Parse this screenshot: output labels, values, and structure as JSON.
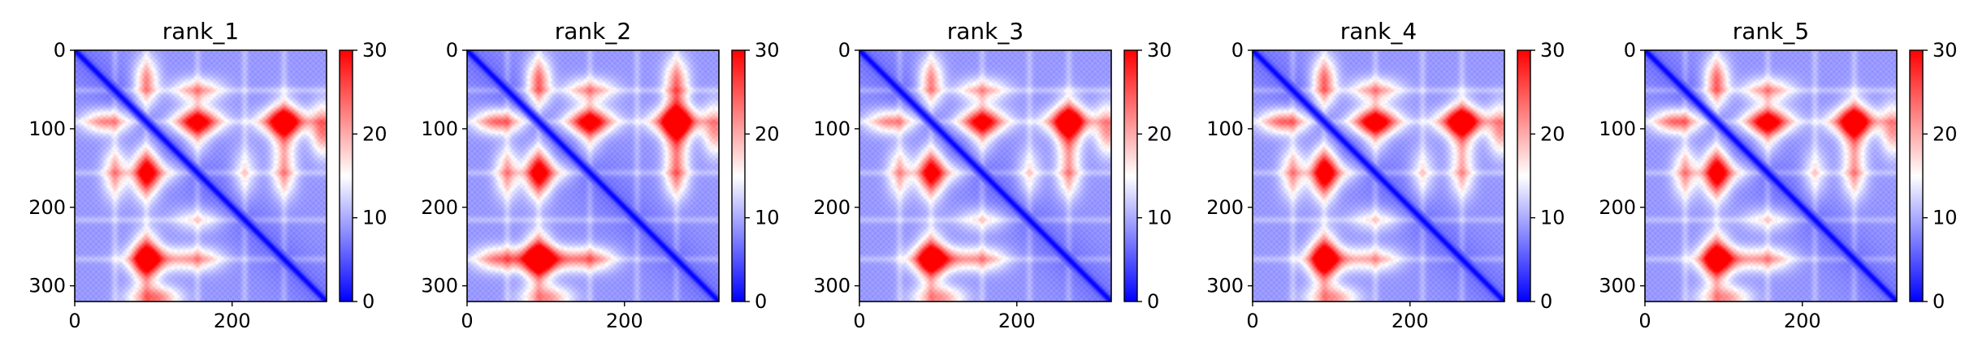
{
  "figure": {
    "description_type": "heatmap-grid",
    "panel_count": 5
  },
  "colormap": {
    "name": "bwr",
    "low_color": "#0000ff",
    "mid_color": "#ffffff",
    "high_color": "#ff0000"
  },
  "chart_data": [
    {
      "type": "heatmap",
      "title": "rank_1",
      "xlabel": "",
      "ylabel": "",
      "xlim": [
        0,
        320
      ],
      "ylim": [
        320,
        0
      ],
      "xticks": [
        0,
        200
      ],
      "yticks": [
        0,
        100,
        200,
        300
      ],
      "colorbar": {
        "vmin": 0,
        "vmax": 30,
        "ticks": [
          0,
          10,
          20,
          30
        ]
      },
      "diagonal_value": 0,
      "background_value": 6,
      "hotspots": [
        {
          "i": 90,
          "j": 155,
          "value": 26
        },
        {
          "i": 90,
          "j": 265,
          "value": 26
        },
        {
          "i": 90,
          "j": 40,
          "value": 20
        },
        {
          "i": 50,
          "j": 155,
          "value": 18
        },
        {
          "i": 265,
          "j": 95,
          "value": 22
        },
        {
          "i": 265,
          "j": 155,
          "value": 18
        },
        {
          "i": 155,
          "j": 100,
          "value": 16
        },
        {
          "i": 215,
          "j": 155,
          "value": 14
        },
        {
          "i": 315,
          "j": 100,
          "value": 22
        }
      ]
    },
    {
      "type": "heatmap",
      "title": "rank_2",
      "xlabel": "",
      "ylabel": "",
      "xlim": [
        0,
        320
      ],
      "ylim": [
        320,
        0
      ],
      "xticks": [
        0,
        200
      ],
      "yticks": [
        0,
        100,
        200,
        300
      ],
      "colorbar": {
        "vmin": 0,
        "vmax": 30,
        "ticks": [
          0,
          10,
          20,
          30
        ]
      },
      "diagonal_value": 0,
      "background_value": 6,
      "hotspots": [
        {
          "i": 90,
          "j": 155,
          "value": 26
        },
        {
          "i": 90,
          "j": 265,
          "value": 26
        },
        {
          "i": 90,
          "j": 40,
          "value": 22
        },
        {
          "i": 265,
          "j": 95,
          "value": 28
        },
        {
          "i": 265,
          "j": 155,
          "value": 20
        },
        {
          "i": 265,
          "j": 40,
          "value": 20
        },
        {
          "i": 50,
          "j": 155,
          "value": 18
        },
        {
          "i": 155,
          "j": 100,
          "value": 16
        },
        {
          "i": 315,
          "j": 100,
          "value": 20
        }
      ]
    },
    {
      "type": "heatmap",
      "title": "rank_3",
      "xlabel": "",
      "ylabel": "",
      "xlim": [
        0,
        320
      ],
      "ylim": [
        320,
        0
      ],
      "xticks": [
        0,
        200
      ],
      "yticks": [
        0,
        100,
        200,
        300
      ],
      "colorbar": {
        "vmin": 0,
        "vmax": 30,
        "ticks": [
          0,
          10,
          20,
          30
        ]
      },
      "diagonal_value": 0,
      "background_value": 6,
      "hotspots": [
        {
          "i": 90,
          "j": 155,
          "value": 25
        },
        {
          "i": 90,
          "j": 265,
          "value": 24
        },
        {
          "i": 90,
          "j": 40,
          "value": 20
        },
        {
          "i": 265,
          "j": 95,
          "value": 26
        },
        {
          "i": 265,
          "j": 155,
          "value": 18
        },
        {
          "i": 50,
          "j": 155,
          "value": 17
        },
        {
          "i": 155,
          "j": 100,
          "value": 16
        },
        {
          "i": 215,
          "j": 155,
          "value": 14
        },
        {
          "i": 315,
          "j": 100,
          "value": 20
        }
      ]
    },
    {
      "type": "heatmap",
      "title": "rank_4",
      "xlabel": "",
      "ylabel": "",
      "xlim": [
        0,
        320
      ],
      "ylim": [
        320,
        0
      ],
      "xticks": [
        0,
        200
      ],
      "yticks": [
        0,
        100,
        200,
        300
      ],
      "colorbar": {
        "vmin": 0,
        "vmax": 30,
        "ticks": [
          0,
          10,
          20,
          30
        ]
      },
      "diagonal_value": 0,
      "background_value": 6,
      "hotspots": [
        {
          "i": 90,
          "j": 155,
          "value": 28
        },
        {
          "i": 90,
          "j": 265,
          "value": 27
        },
        {
          "i": 90,
          "j": 40,
          "value": 22
        },
        {
          "i": 50,
          "j": 155,
          "value": 18
        },
        {
          "i": 265,
          "j": 95,
          "value": 22
        },
        {
          "i": 265,
          "j": 155,
          "value": 17
        },
        {
          "i": 155,
          "j": 100,
          "value": 16
        },
        {
          "i": 215,
          "j": 155,
          "value": 14
        },
        {
          "i": 315,
          "j": 100,
          "value": 20
        }
      ]
    },
    {
      "type": "heatmap",
      "title": "rank_5",
      "xlabel": "",
      "ylabel": "",
      "xlim": [
        0,
        320
      ],
      "ylim": [
        320,
        0
      ],
      "xticks": [
        0,
        200
      ],
      "yticks": [
        0,
        100,
        200,
        300
      ],
      "colorbar": {
        "vmin": 0,
        "vmax": 30,
        "ticks": [
          0,
          10,
          20,
          30
        ]
      },
      "diagonal_value": 0,
      "background_value": 6,
      "hotspots": [
        {
          "i": 90,
          "j": 155,
          "value": 27
        },
        {
          "i": 90,
          "j": 265,
          "value": 25
        },
        {
          "i": 90,
          "j": 40,
          "value": 22
        },
        {
          "i": 50,
          "j": 155,
          "value": 18
        },
        {
          "i": 265,
          "j": 95,
          "value": 24
        },
        {
          "i": 265,
          "j": 155,
          "value": 18
        },
        {
          "i": 155,
          "j": 100,
          "value": 16
        },
        {
          "i": 215,
          "j": 155,
          "value": 14
        },
        {
          "i": 315,
          "j": 100,
          "value": 20
        }
      ]
    }
  ]
}
